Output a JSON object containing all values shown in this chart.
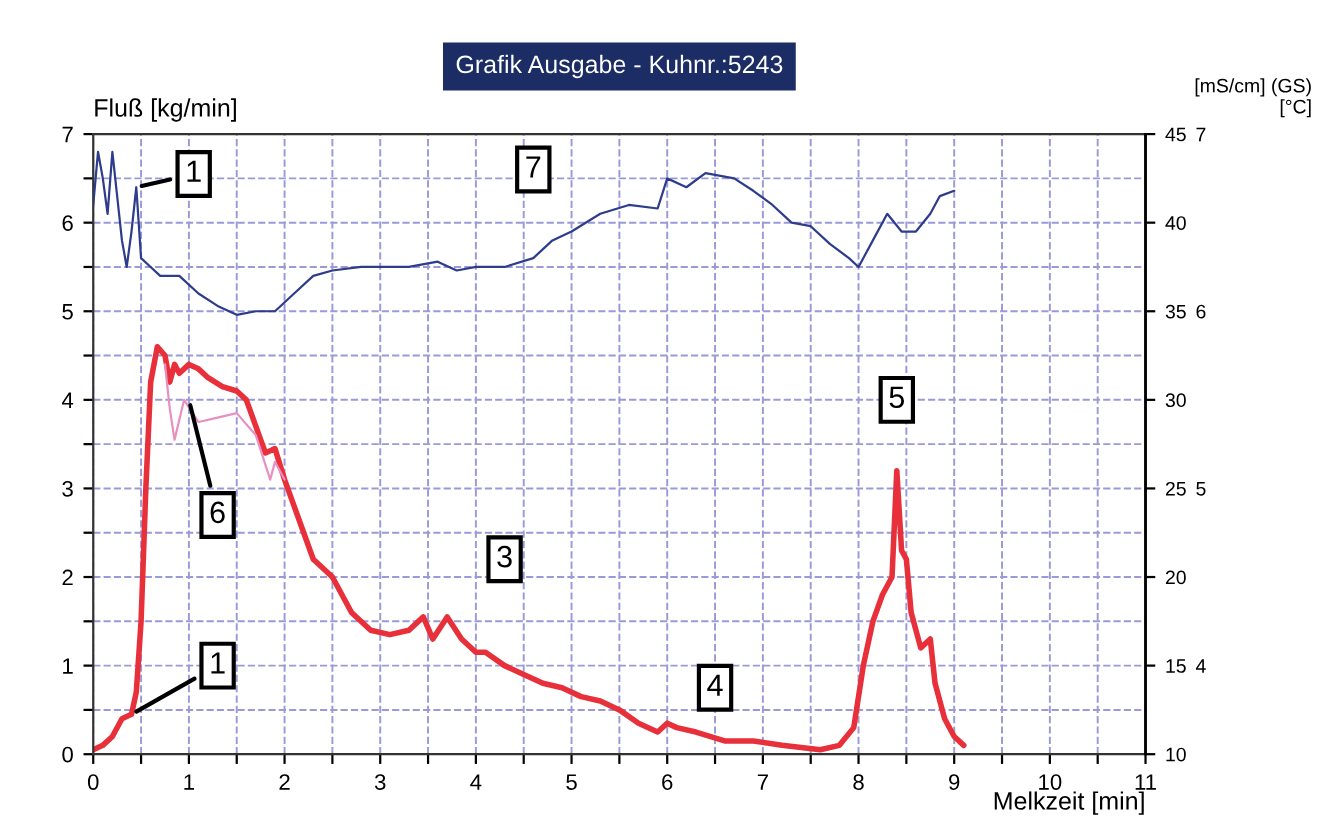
{
  "chart_data": {
    "type": "line",
    "title": "Grafik Ausgabe - Kuhnr.:5243",
    "xlabel": "Melkzeit [min]",
    "ylabel": "Fluß [kg/min]",
    "y2label": "[°C]",
    "y3label": "[mS/cm] (GS)",
    "xlim": [
      0,
      11
    ],
    "xticks": [
      0,
      {
        "value": 0.5,
        "label": null
      },
      1,
      {
        "value": 1.5,
        "label": null
      },
      2,
      {
        "value": 2.5,
        "label": null
      },
      3,
      {
        "value": 3.5,
        "label": null
      },
      4,
      {
        "value": 4.5,
        "label": null
      },
      5,
      {
        "value": 5.5,
        "label": null
      },
      6,
      {
        "value": 6.5,
        "label": null
      },
      7,
      {
        "value": 7.5,
        "label": null
      },
      8,
      {
        "value": 8.5,
        "label": null
      },
      9,
      {
        "value": 9.5,
        "label": null
      },
      10,
      {
        "value": 10.5,
        "label": null
      },
      11
    ],
    "ylim": [
      0,
      7
    ],
    "yticks": [
      0,
      {
        "value": 0.5,
        "label": null
      },
      1,
      {
        "value": 1.5,
        "label": null
      },
      2,
      {
        "value": 2.5,
        "label": null
      },
      3,
      {
        "value": 3.5,
        "label": null
      },
      4,
      {
        "value": 4.5,
        "label": null
      },
      5,
      {
        "value": 5.5,
        "label": null
      },
      6,
      {
        "value": 6.5,
        "label": null
      },
      7
    ],
    "y2lim": [
      10,
      45
    ],
    "y2ticks": [
      10,
      15,
      20,
      25,
      30,
      35,
      40,
      45
    ],
    "y3lim": [
      3.5,
      7
    ],
    "y3ticks": [
      4,
      5,
      6,
      7
    ],
    "grid": true,
    "marker": "none",
    "line_style": "solid",
    "series": [
      {
        "color": "#e8303a",
        "x": [
          0,
          0.1,
          0.2,
          0.3,
          0.4,
          0.45,
          0.5,
          0.55,
          0.6,
          0.67,
          0.75,
          0.8,
          0.85,
          0.9,
          1.0,
          1.1,
          1.2,
          1.35,
          1.5,
          1.6,
          1.7,
          1.8,
          1.9,
          2.0,
          2.1,
          2.2,
          2.3,
          2.5,
          2.7,
          2.9,
          3.1,
          3.3,
          3.45,
          3.55,
          3.7,
          3.85,
          4.0,
          4.1,
          4.3,
          4.5,
          4.7,
          4.9,
          5.1,
          5.3,
          5.5,
          5.7,
          5.9,
          6.0,
          6.1,
          6.3,
          6.6,
          6.9,
          7.2,
          7.6,
          7.8,
          7.95,
          8.05,
          8.15,
          8.25,
          8.35,
          8.4,
          8.45,
          8.5,
          8.55,
          8.65,
          8.75,
          8.8,
          8.9,
          9.0,
          9.1
        ],
        "values": [
          0.05,
          0.1,
          0.2,
          0.4,
          0.45,
          0.7,
          1.5,
          3,
          4.2,
          4.6,
          4.5,
          4.2,
          4.4,
          4.3,
          4.4,
          4.35,
          4.25,
          4.15,
          4.1,
          4.0,
          3.7,
          3.4,
          3.45,
          3.1,
          2.8,
          2.5,
          2.2,
          2.0,
          1.6,
          1.4,
          1.35,
          1.4,
          1.55,
          1.3,
          1.55,
          1.3,
          1.15,
          1.15,
          1.0,
          0.9,
          0.8,
          0.75,
          0.65,
          0.6,
          0.5,
          0.35,
          0.25,
          0.35,
          0.3,
          0.25,
          0.15,
          0.15,
          0.1,
          0.05,
          0.1,
          0.3,
          1.0,
          1.5,
          1.8,
          2.0,
          3.2,
          2.3,
          2.2,
          1.6,
          1.2,
          1.3,
          0.8,
          0.4,
          0.2,
          0.1
        ]
      },
      {
        "color": "#e890c0",
        "x": [
          0.75,
          0.8,
          0.85,
          0.95,
          1.1,
          1.3,
          1.5,
          1.7,
          1.85,
          1.9,
          2.0
        ],
        "values": [
          4.4,
          3.9,
          3.55,
          4.0,
          3.75,
          3.8,
          3.85,
          3.6,
          3.1,
          3.3,
          3.1
        ]
      },
      {
        "color": "#2e3c8c",
        "axis": "y3",
        "x": [
          0,
          0.05,
          0.1,
          0.15,
          0.2,
          0.25,
          0.3,
          0.35,
          0.4,
          0.45,
          0.5,
          0.6,
          0.7,
          0.9,
          1.1,
          1.3,
          1.5,
          1.7,
          1.9,
          2.1,
          2.3,
          2.5,
          2.8,
          3.0,
          3.3,
          3.6,
          3.8,
          4.0,
          4.3,
          4.6,
          4.8,
          5.0,
          5.3,
          5.6,
          5.9,
          6.0,
          6.2,
          6.4,
          6.7,
          6.9,
          7.1,
          7.3,
          7.5,
          7.7,
          7.9,
          8.0,
          8.15,
          8.3,
          8.45,
          8.6,
          8.75,
          8.85,
          9.0
        ],
        "values": [
          6.6,
          6.9,
          6.75,
          6.55,
          6.9,
          6.65,
          6.4,
          6.25,
          6.45,
          6.7,
          6.3,
          6.25,
          6.2,
          6.2,
          6.1,
          6.03,
          5.98,
          6.0,
          6.0,
          6.1,
          6.2,
          6.23,
          6.25,
          6.25,
          6.25,
          6.28,
          6.23,
          6.25,
          6.25,
          6.3,
          6.4,
          6.45,
          6.55,
          6.6,
          6.58,
          6.75,
          6.7,
          6.78,
          6.75,
          6.68,
          6.6,
          6.5,
          6.48,
          6.38,
          6.3,
          6.25,
          6.4,
          6.55,
          6.45,
          6.45,
          6.55,
          6.65,
          6.68
        ]
      }
    ],
    "annotations": [
      {
        "text": "1",
        "x": 0.45,
        "y": 6.4
      },
      {
        "text": "7",
        "x": 4.6,
        "y": 6.6
      },
      {
        "text": "6",
        "x": 1.0,
        "y": 4.0
      },
      {
        "text": "3",
        "x": 4.3,
        "y": 2.2
      },
      {
        "text": "1",
        "x": 0.4,
        "y": 0.45
      },
      {
        "text": "4",
        "x": 6.5,
        "y": 0.75
      },
      {
        "text": "5",
        "x": 8.4,
        "y": 4.0
      }
    ]
  }
}
